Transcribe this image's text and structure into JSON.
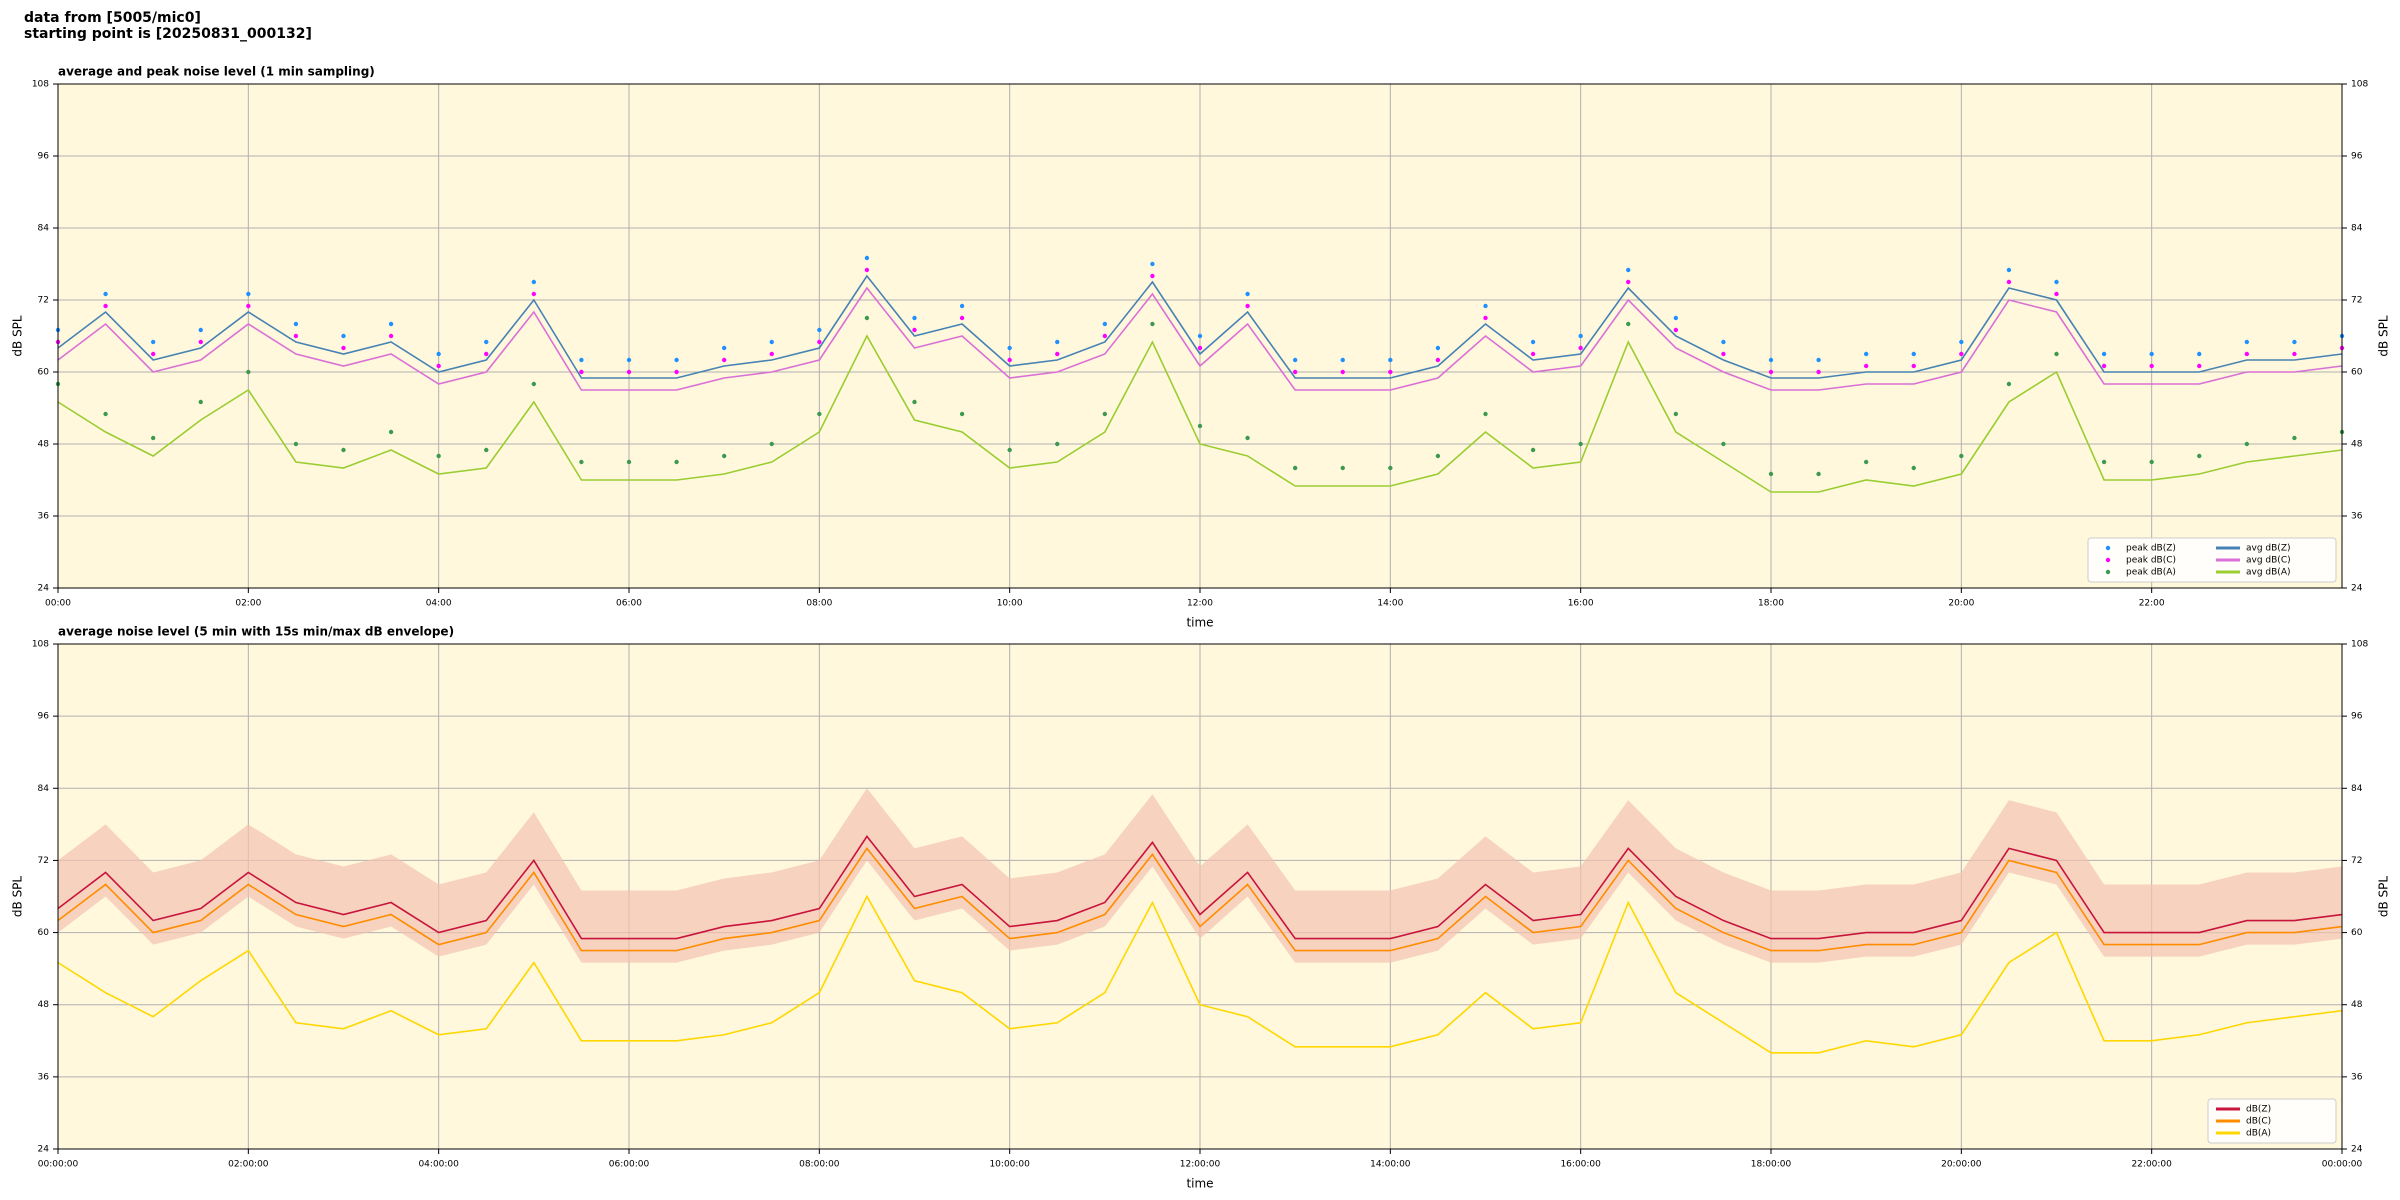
{
  "page_title": [
    "data from [5005/mic0]",
    "starting point is [20250831_000132]"
  ],
  "chart_data": [
    {
      "type": "line",
      "title": "average and peak noise level (1 min sampling)",
      "xlabel": "time",
      "ylabel": "dB SPL",
      "y2label": "dB SPL",
      "background": "#fff8dc",
      "grid": true,
      "legend": "lower right",
      "legend_columns": 2,
      "xlim": [
        0,
        24
      ],
      "xticks": [
        {
          "value": 0,
          "label": "00:00"
        },
        {
          "value": 2,
          "label": "02:00"
        },
        {
          "value": 4,
          "label": "04:00"
        },
        {
          "value": 6,
          "label": "06:00"
        },
        {
          "value": 8,
          "label": "08:00"
        },
        {
          "value": 10,
          "label": "10:00"
        },
        {
          "value": 12,
          "label": "12:00"
        },
        {
          "value": 14,
          "label": "14:00"
        },
        {
          "value": 16,
          "label": "16:00"
        },
        {
          "value": 18,
          "label": "18:00"
        },
        {
          "value": 20,
          "label": "20:00"
        },
        {
          "value": 22,
          "label": "22:00"
        }
      ],
      "ylim": [
        24,
        108
      ],
      "yticks": [
        24,
        36,
        48,
        60,
        72,
        84,
        96,
        108
      ],
      "y2lim": [
        24,
        108
      ],
      "y2ticks": [
        24,
        36,
        48,
        60,
        72,
        84,
        96,
        108
      ],
      "x": [
        0,
        0.5,
        1,
        1.5,
        2,
        2.5,
        3,
        3.5,
        4,
        4.5,
        5,
        5.5,
        6,
        6.5,
        7,
        7.5,
        8,
        8.5,
        9,
        9.5,
        10,
        10.5,
        11,
        11.5,
        12,
        12.5,
        13,
        13.5,
        14,
        14.5,
        15,
        15.5,
        16,
        16.5,
        17,
        17.5,
        18,
        18.5,
        19,
        19.5,
        20,
        20.5,
        21,
        21.5,
        22,
        22.5,
        23,
        23.5,
        24
      ],
      "series": [
        {
          "name": "peak dB(Z)",
          "style": "dots",
          "color": "#1e90ff",
          "values": [
            67,
            73,
            65,
            67,
            73,
            68,
            66,
            68,
            63,
            65,
            75,
            62,
            62,
            62,
            64,
            65,
            67,
            79,
            69,
            71,
            64,
            65,
            68,
            78,
            66,
            73,
            62,
            62,
            62,
            64,
            71,
            65,
            66,
            77,
            69,
            65,
            62,
            62,
            63,
            63,
            65,
            77,
            75,
            63,
            63,
            63,
            65,
            65,
            66
          ]
        },
        {
          "name": "peak dB(C)",
          "style": "dots",
          "color": "#ff00ff",
          "values": [
            65,
            71,
            63,
            65,
            71,
            66,
            64,
            66,
            61,
            63,
            73,
            60,
            60,
            60,
            62,
            63,
            65,
            77,
            67,
            69,
            62,
            63,
            66,
            76,
            64,
            71,
            60,
            60,
            60,
            62,
            69,
            63,
            64,
            75,
            67,
            63,
            60,
            60,
            61,
            61,
            63,
            75,
            73,
            61,
            61,
            61,
            63,
            63,
            64
          ]
        },
        {
          "name": "peak dB(A)",
          "style": "dots",
          "color": "#3c9a50",
          "values": [
            58,
            53,
            49,
            55,
            60,
            48,
            47,
            50,
            46,
            47,
            58,
            45,
            45,
            45,
            46,
            48,
            53,
            69,
            55,
            53,
            47,
            48,
            53,
            68,
            51,
            49,
            44,
            44,
            44,
            46,
            53,
            47,
            48,
            68,
            53,
            48,
            43,
            43,
            45,
            44,
            46,
            58,
            63,
            45,
            45,
            46,
            48,
            49,
            50
          ]
        },
        {
          "name": "avg dB(Z)",
          "style": "line",
          "color": "#4682b4",
          "values": [
            64,
            70,
            62,
            64,
            70,
            65,
            63,
            65,
            60,
            62,
            72,
            59,
            59,
            59,
            61,
            62,
            64,
            76,
            66,
            68,
            61,
            62,
            65,
            75,
            63,
            70,
            59,
            59,
            59,
            61,
            68,
            62,
            63,
            74,
            66,
            62,
            59,
            59,
            60,
            60,
            62,
            74,
            72,
            60,
            60,
            60,
            62,
            62,
            63
          ]
        },
        {
          "name": "avg dB(C)",
          "style": "line",
          "color": "#da70d6",
          "values": [
            62,
            68,
            60,
            62,
            68,
            63,
            61,
            63,
            58,
            60,
            70,
            57,
            57,
            57,
            59,
            60,
            62,
            74,
            64,
            66,
            59,
            60,
            63,
            73,
            61,
            68,
            57,
            57,
            57,
            59,
            66,
            60,
            61,
            72,
            64,
            60,
            57,
            57,
            58,
            58,
            60,
            72,
            70,
            58,
            58,
            58,
            60,
            60,
            61
          ]
        },
        {
          "name": "avg dB(A)",
          "style": "line",
          "color": "#9acd32",
          "values": [
            55,
            50,
            46,
            52,
            57,
            45,
            44,
            47,
            43,
            44,
            55,
            42,
            42,
            42,
            43,
            45,
            50,
            66,
            52,
            50,
            44,
            45,
            50,
            65,
            48,
            46,
            41,
            41,
            41,
            43,
            50,
            44,
            45,
            65,
            50,
            45,
            40,
            40,
            42,
            41,
            43,
            55,
            60,
            42,
            42,
            43,
            45,
            46,
            47
          ]
        }
      ]
    },
    {
      "type": "line",
      "title": "average noise level (5 min with 15s min/max dB envelope)",
      "xlabel": "time",
      "ylabel": "dB SPL",
      "y2label": "dB SPL",
      "background": "#fff8dc",
      "grid": true,
      "legend": "lower right",
      "legend_columns": 1,
      "xlim": [
        0,
        24
      ],
      "xticks": [
        {
          "value": 0,
          "label": "00:00:00"
        },
        {
          "value": 2,
          "label": "02:00:00"
        },
        {
          "value": 4,
          "label": "04:00:00"
        },
        {
          "value": 6,
          "label": "06:00:00"
        },
        {
          "value": 8,
          "label": "08:00:00"
        },
        {
          "value": 10,
          "label": "10:00:00"
        },
        {
          "value": 12,
          "label": "12:00:00"
        },
        {
          "value": 14,
          "label": "14:00:00"
        },
        {
          "value": 16,
          "label": "16:00:00"
        },
        {
          "value": 18,
          "label": "18:00:00"
        },
        {
          "value": 20,
          "label": "20:00:00"
        },
        {
          "value": 22,
          "label": "22:00:00"
        },
        {
          "value": 24,
          "label": "00:00:00"
        }
      ],
      "ylim": [
        24,
        108
      ],
      "yticks": [
        24,
        36,
        48,
        60,
        72,
        84,
        96,
        108
      ],
      "y2lim": [
        24,
        108
      ],
      "y2ticks": [
        24,
        36,
        48,
        60,
        72,
        84,
        96,
        108
      ],
      "x": [
        0,
        0.5,
        1,
        1.5,
        2,
        2.5,
        3,
        3.5,
        4,
        4.5,
        5,
        5.5,
        6,
        6.5,
        7,
        7.5,
        8,
        8.5,
        9,
        9.5,
        10,
        10.5,
        11,
        11.5,
        12,
        12.5,
        13,
        13.5,
        14,
        14.5,
        15,
        15.5,
        16,
        16.5,
        17,
        17.5,
        18,
        18.5,
        19,
        19.5,
        20,
        20.5,
        21,
        21.5,
        22,
        22.5,
        23,
        23.5,
        24
      ],
      "envelope": {
        "color": "#f4c2b0",
        "high": [
          72,
          78,
          70,
          72,
          78,
          73,
          71,
          73,
          68,
          70,
          80,
          67,
          67,
          67,
          69,
          70,
          72,
          84,
          74,
          76,
          69,
          70,
          73,
          83,
          71,
          78,
          67,
          67,
          67,
          69,
          76,
          70,
          71,
          82,
          74,
          70,
          67,
          67,
          68,
          68,
          70,
          82,
          80,
          68,
          68,
          68,
          70,
          70,
          71
        ],
        "low": [
          60,
          66,
          58,
          60,
          66,
          61,
          59,
          61,
          56,
          58,
          68,
          55,
          55,
          55,
          57,
          58,
          60,
          72,
          62,
          64,
          57,
          58,
          61,
          71,
          59,
          66,
          55,
          55,
          55,
          57,
          64,
          58,
          59,
          70,
          62,
          58,
          55,
          55,
          56,
          56,
          58,
          70,
          68,
          56,
          56,
          56,
          58,
          58,
          59
        ]
      },
      "series": [
        {
          "name": "dB(Z)",
          "style": "line",
          "color": "#c8143c",
          "values": [
            64,
            70,
            62,
            64,
            70,
            65,
            63,
            65,
            60,
            62,
            72,
            59,
            59,
            59,
            61,
            62,
            64,
            76,
            66,
            68,
            61,
            62,
            65,
            75,
            63,
            70,
            59,
            59,
            59,
            61,
            68,
            62,
            63,
            74,
            66,
            62,
            59,
            59,
            60,
            60,
            62,
            74,
            72,
            60,
            60,
            60,
            62,
            62,
            63
          ]
        },
        {
          "name": "dB(C)",
          "style": "line",
          "color": "#ff8c00",
          "values": [
            62,
            68,
            60,
            62,
            68,
            63,
            61,
            63,
            58,
            60,
            70,
            57,
            57,
            57,
            59,
            60,
            62,
            74,
            64,
            66,
            59,
            60,
            63,
            73,
            61,
            68,
            57,
            57,
            57,
            59,
            66,
            60,
            61,
            72,
            64,
            60,
            57,
            57,
            58,
            58,
            60,
            72,
            70,
            58,
            58,
            58,
            60,
            60,
            61
          ]
        },
        {
          "name": "dB(A)",
          "style": "line",
          "color": "#ffd700",
          "values": [
            55,
            50,
            46,
            52,
            57,
            45,
            44,
            47,
            43,
            44,
            55,
            42,
            42,
            42,
            43,
            45,
            50,
            66,
            52,
            50,
            44,
            45,
            50,
            65,
            48,
            46,
            41,
            41,
            41,
            43,
            50,
            44,
            45,
            65,
            50,
            45,
            40,
            40,
            42,
            41,
            43,
            55,
            60,
            42,
            42,
            43,
            45,
            46,
            47
          ]
        }
      ]
    }
  ]
}
